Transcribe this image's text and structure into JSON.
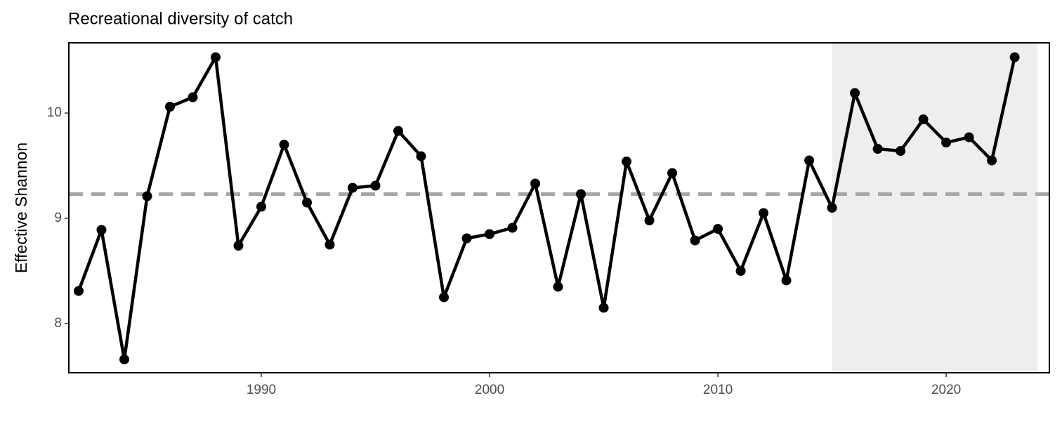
{
  "chart_data": {
    "type": "line",
    "title": "Recreational diversity of catch",
    "y_label": "Effective Shannon",
    "x": [
      1982,
      1983,
      1984,
      1985,
      1986,
      1987,
      1988,
      1989,
      1990,
      1991,
      1992,
      1993,
      1994,
      1995,
      1996,
      1997,
      1998,
      1999,
      2000,
      2001,
      2002,
      2003,
      2004,
      2005,
      2006,
      2007,
      2008,
      2009,
      2010,
      2011,
      2012,
      2013,
      2014,
      2015,
      2016,
      2017,
      2018,
      2019,
      2020,
      2021,
      2022,
      2023
    ],
    "values": [
      8.31,
      8.89,
      7.66,
      9.21,
      10.06,
      10.15,
      10.53,
      8.74,
      9.11,
      9.7,
      9.15,
      8.75,
      9.29,
      9.31,
      9.83,
      9.59,
      8.25,
      8.81,
      8.85,
      8.91,
      9.33,
      8.35,
      9.23,
      8.15,
      9.54,
      8.98,
      9.43,
      8.79,
      8.9,
      8.5,
      9.05,
      8.41,
      9.55,
      9.1,
      10.19,
      9.66,
      9.64,
      9.94,
      9.72,
      9.77,
      9.55,
      10.53
    ],
    "color": "#000000",
    "reference_line": 9.23,
    "reference_color": "#a6a6a6",
    "shaded_region": [
      2015,
      2024
    ],
    "shade_color": "#eeeeee",
    "xlim": [
      1981.57,
      2024.52
    ],
    "xticks": [
      1990,
      2000,
      2010,
      2020
    ],
    "ylim": [
      7.533,
      10.667
    ],
    "yticks": [
      8,
      9,
      10
    ]
  }
}
